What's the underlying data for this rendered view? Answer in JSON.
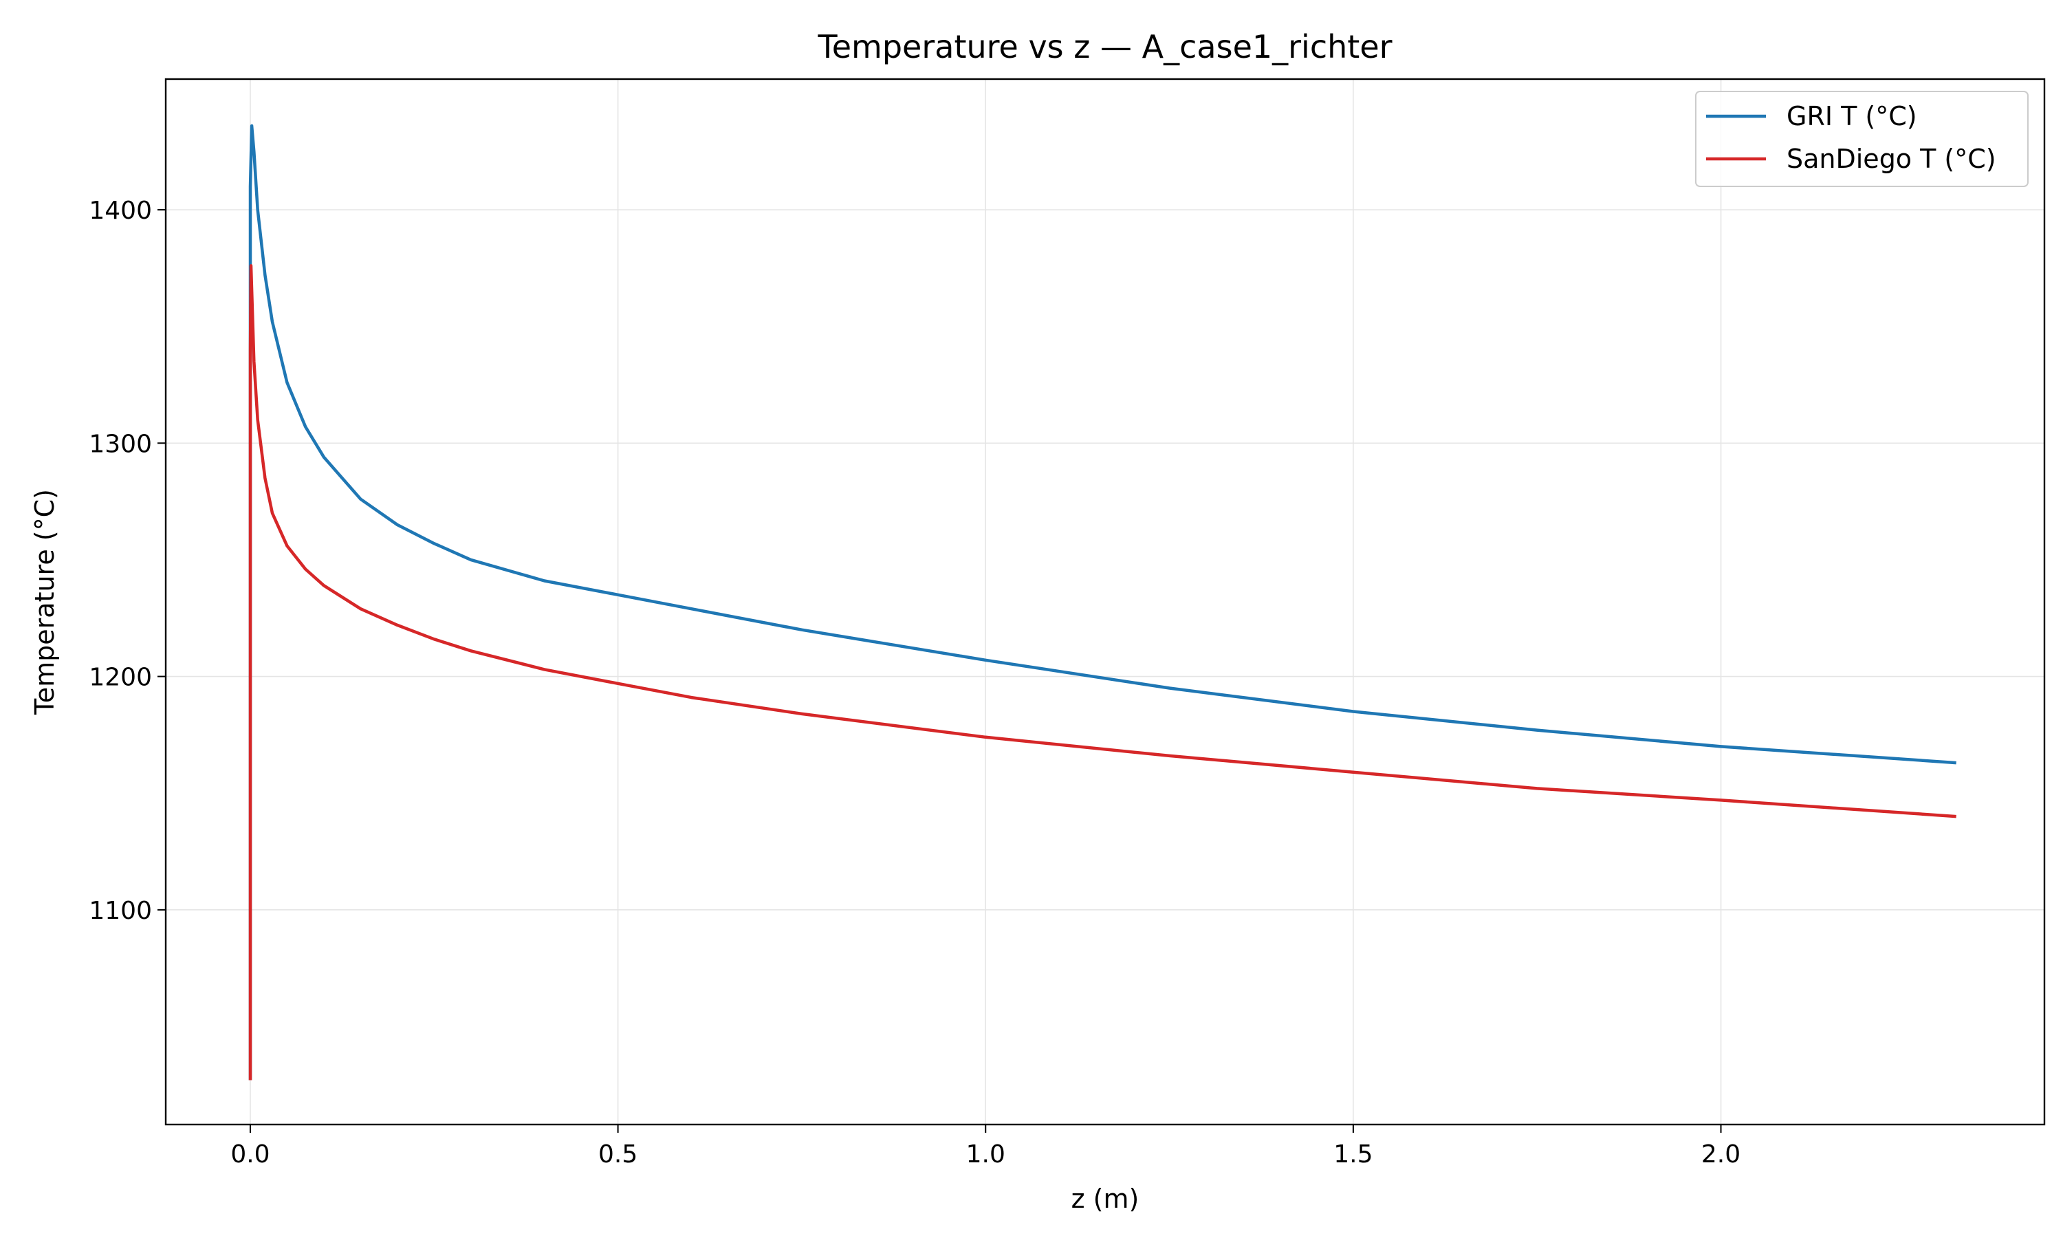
{
  "chart_data": {
    "type": "line",
    "title": "Temperature vs z — A_case1_richter",
    "xlabel": "z (m)",
    "ylabel": "Temperature (°C)",
    "xlim": [
      -0.115,
      2.44
    ],
    "ylim": [
      1008,
      1456
    ],
    "xticks": [
      0.0,
      0.5,
      1.0,
      1.5,
      2.0
    ],
    "xtick_labels": [
      "0.0",
      "0.5",
      "1.0",
      "1.5",
      "2.0"
    ],
    "yticks": [
      1100,
      1200,
      1300,
      1400
    ],
    "ytick_labels": [
      "1100",
      "1200",
      "1300",
      "1400"
    ],
    "grid": true,
    "legend_position": "upper right",
    "series": [
      {
        "name": "GRI T (°C)",
        "color": "#1f77b4",
        "x": [
          0.0,
          0.0,
          0.0,
          0.0,
          0.0,
          0.0,
          0.002,
          0.005,
          0.01,
          0.02,
          0.03,
          0.05,
          0.075,
          0.1,
          0.15,
          0.2,
          0.25,
          0.3,
          0.4,
          0.5,
          0.6,
          0.75,
          1.0,
          1.25,
          1.5,
          1.75,
          2.0,
          2.32
        ],
        "y": [
          1027,
          1150,
          1250,
          1330,
          1380,
          1410,
          1436,
          1425,
          1400,
          1372,
          1352,
          1326,
          1307,
          1294,
          1276,
          1265,
          1257,
          1250,
          1241,
          1235,
          1229,
          1220,
          1207,
          1195,
          1185,
          1177,
          1170,
          1163
        ]
      },
      {
        "name": "SanDiego T (°C)",
        "color": "#d62728",
        "x": [
          0.0,
          0.0,
          0.0,
          0.0,
          0.0,
          0.001,
          0.003,
          0.005,
          0.01,
          0.02,
          0.03,
          0.05,
          0.075,
          0.1,
          0.15,
          0.2,
          0.25,
          0.3,
          0.4,
          0.5,
          0.6,
          0.75,
          1.0,
          1.25,
          1.5,
          1.75,
          2.0,
          2.32
        ],
        "y": [
          1027,
          1120,
          1200,
          1280,
          1340,
          1376,
          1355,
          1335,
          1310,
          1285,
          1270,
          1256,
          1246,
          1239,
          1229,
          1222,
          1216,
          1211,
          1203,
          1197,
          1191,
          1184,
          1174,
          1166,
          1159,
          1152,
          1147,
          1140
        ]
      }
    ]
  }
}
